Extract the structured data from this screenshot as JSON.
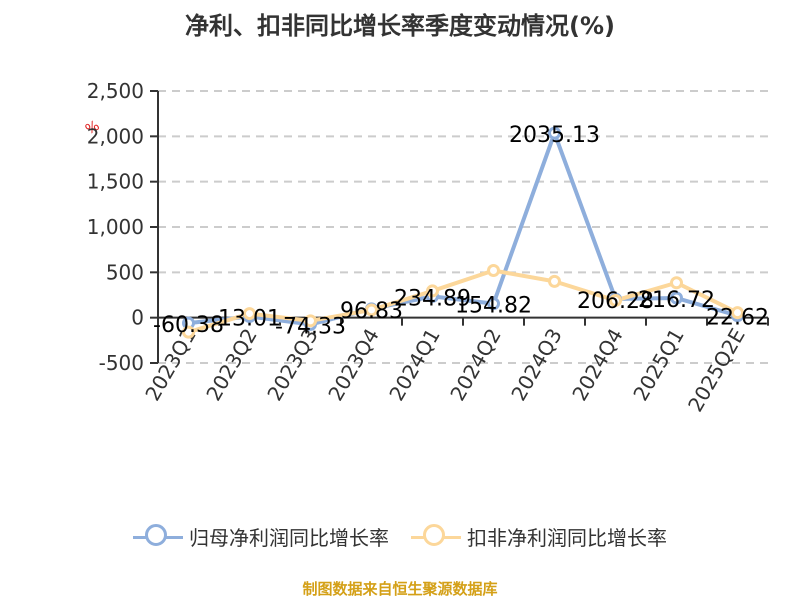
{
  "title": "净利、扣非同比增长率季度变动情况(%)",
  "unit_marker": "%",
  "legend": [
    {
      "label": "归母净利润同比增长率",
      "color": "#8eaedc"
    },
    {
      "label": "扣非净利润同比增长率",
      "color": "#fcd79a"
    }
  ],
  "source": "制图数据来自恒生聚源数据库",
  "y_ticks": [
    "2,500",
    "2,000",
    "1,500",
    "1,000",
    "500",
    "0",
    "-500"
  ],
  "x_ticks": [
    "2023Q1",
    "2023Q2",
    "2023Q3",
    "2023Q4",
    "2024Q1",
    "2024Q2",
    "2024Q3",
    "2024Q4",
    "2025Q1",
    "2025Q2E"
  ],
  "data_labels": [
    "-60.38",
    "13.01",
    "-74.33",
    "96.83",
    "234.89",
    "154.82",
    "2035.13",
    "206.28",
    "216.72",
    "22.62"
  ],
  "chart_data": {
    "type": "line",
    "title": "净利、扣非同比增长率季度变动情况(%)",
    "xlabel": "",
    "ylabel": "%",
    "categories": [
      "2023Q1",
      "2023Q2",
      "2023Q3",
      "2023Q4",
      "2024Q1",
      "2024Q2",
      "2024Q3",
      "2024Q4",
      "2025Q1",
      "2025Q2E"
    ],
    "series": [
      {
        "name": "归母净利润同比增长率",
        "color": "#8eaedc",
        "values": [
          -60.38,
          13.01,
          -74.33,
          96.83,
          234.89,
          154.82,
          2035.13,
          206.28,
          216.72,
          22.62
        ]
      },
      {
        "name": "扣非净利润同比增长率",
        "color": "#fcd79a",
        "values": [
          -160,
          45,
          -35,
          85,
          295,
          520,
          400,
          190,
          385,
          55
        ]
      }
    ],
    "ylim": [
      -500,
      2500
    ],
    "y_ticks": [
      -500,
      0,
      500,
      1000,
      1500,
      2000,
      2500
    ],
    "grid": "horizontal dashed",
    "legend_position": "bottom",
    "data_labels_series": "归母净利润同比增长率"
  }
}
